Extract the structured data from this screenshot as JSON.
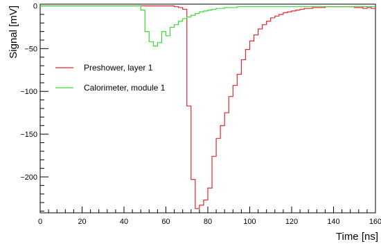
{
  "chart_data": {
    "type": "line",
    "xlabel": "Time [ns]",
    "ylabel": "Signal [mV]",
    "xlim": [
      0,
      160
    ],
    "ylim": [
      -242,
      2
    ],
    "x_ticks": [
      0,
      20,
      40,
      60,
      80,
      100,
      120,
      140,
      160
    ],
    "y_ticks": [
      0,
      -50,
      -100,
      -150,
      -200
    ],
    "grid": false,
    "legend_position": "left-middle",
    "series": [
      {
        "name": "Preshower, layer 1",
        "color": "#e8252c",
        "step": 2,
        "x_start": 0,
        "values": [
          0,
          0,
          0,
          0,
          0,
          0,
          0,
          0,
          0,
          0,
          0,
          0,
          0,
          0,
          0,
          0,
          0,
          0,
          0,
          0,
          0,
          0,
          0,
          0,
          0,
          0,
          0,
          0,
          0,
          0,
          0,
          0,
          -1,
          -2,
          -4,
          -117,
          -203,
          -237,
          -233,
          -227,
          -213,
          -176,
          -155,
          -140,
          -125,
          -106,
          -93,
          -80,
          -63,
          -51,
          -41,
          -34,
          -27,
          -22,
          -18,
          -14,
          -12,
          -10,
          -8,
          -7,
          -6,
          -5,
          -4,
          -3,
          -3,
          -2,
          -2,
          -2,
          -1,
          -1,
          -1,
          -1,
          -1,
          -1,
          -1,
          -2,
          -2,
          -3,
          -2,
          -3
        ]
      },
      {
        "name": "Calorimeter, module 1",
        "color": "#33dd33",
        "step": 2,
        "x_start": 0,
        "values": [
          0,
          0,
          0,
          0,
          0,
          0,
          0,
          0,
          0,
          0,
          0,
          0,
          0,
          0,
          0,
          0,
          0,
          0,
          0,
          0,
          0,
          0,
          0,
          0,
          -5,
          -30,
          -42,
          -47,
          -43,
          -30,
          -35,
          -25,
          -22,
          -18,
          -15,
          -13,
          -11,
          -9,
          -7,
          -6,
          -5,
          -4,
          -3,
          -3,
          -2,
          -2,
          -2,
          -1,
          -1,
          -1,
          -1,
          -1,
          -1,
          -1,
          -1,
          -1,
          -1,
          -1,
          -1,
          -1,
          -1,
          -1,
          -1,
          -1,
          -1,
          -1,
          -1,
          -1,
          -1,
          -1,
          -1,
          -1,
          -1,
          -1,
          -1,
          -1,
          -1,
          -1,
          -1,
          -1
        ]
      }
    ]
  }
}
